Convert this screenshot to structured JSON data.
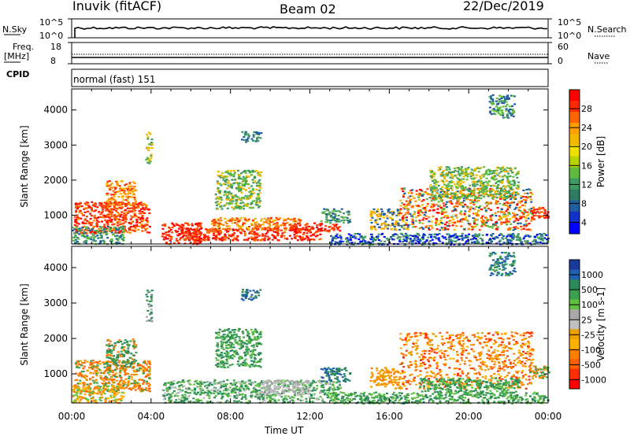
{
  "header": {
    "station": "Inuvik (fitACF)",
    "beam": "Beam 02",
    "date": "22/Dec/2019"
  },
  "strips": {
    "nsky_label": "N.Sky",
    "nsky_ticks": [
      "10^5",
      "10^0"
    ],
    "nsearch_label": "N.Search",
    "nsearch_ticks": [
      "10^5",
      "10^0"
    ],
    "freq_label": "Freq.",
    "freq_unit": "[MHz]",
    "freq_ticks": [
      "18",
      "8"
    ],
    "nave_label": "Nave",
    "nave_ticks": [
      "60",
      "0"
    ],
    "cpid_label": "CPID",
    "cpid_value": "normal (fast) 151"
  },
  "chart_data": [
    {
      "type": "heatmap",
      "name": "power",
      "ylabel": "Slant Range [km]",
      "colorbar_label": "Power [dB]",
      "y_ticks": [
        1000,
        2000,
        3000,
        4000
      ],
      "ylim": [
        180,
        4600
      ],
      "colorbar_ticks": [
        "28",
        "24",
        "20",
        "16",
        "12",
        "8",
        "4"
      ],
      "colorbar_colors": [
        "#ff0000",
        "#ff2a00",
        "#ff6600",
        "#ff9f00",
        "#f2b800",
        "#f0e000",
        "#b8d400",
        "#60bb40",
        "#3d9a60",
        "#2e7d62",
        "#1f5fa0",
        "#1030c8",
        "#0000ff"
      ],
      "regions": [
        {
          "t": [
            0.1,
            3.9
          ],
          "r": [
            500,
            1400
          ],
          "c": [
            "#ff2200",
            "#ff4500",
            "#ff8800",
            "#ff0000"
          ]
        },
        {
          "t": [
            1.7,
            3.2
          ],
          "r": [
            1200,
            2000
          ],
          "c": [
            "#ff7f00",
            "#ffb000",
            "#ff3000"
          ]
        },
        {
          "t": [
            0.0,
            2.6
          ],
          "r": [
            200,
            700
          ],
          "c": [
            "#3d9a60",
            "#1f5fa0",
            "#60bb40"
          ]
        },
        {
          "t": [
            3.7,
            4.0
          ],
          "r": [
            2500,
            3400
          ],
          "c": [
            "#60bb40",
            "#3d9a60",
            "#f2b800"
          ]
        },
        {
          "t": [
            4.5,
            6.5
          ],
          "r": [
            200,
            800
          ],
          "c": [
            "#ff0000",
            "#ff4500"
          ]
        },
        {
          "t": [
            5.5,
            12.5
          ],
          "r": [
            300,
            650
          ],
          "c": [
            "#ff2200",
            "#ff0000",
            "#ff6600"
          ]
        },
        {
          "t": [
            7.0,
            11.5
          ],
          "r": [
            600,
            950
          ],
          "c": [
            "#ff7f00",
            "#f2b800",
            "#ff3a00"
          ]
        },
        {
          "t": [
            11.0,
            13.5
          ],
          "r": [
            550,
            800
          ],
          "c": [
            "#ff0000",
            "#ff4500"
          ]
        },
        {
          "t": [
            7.2,
            9.5
          ],
          "r": [
            1200,
            2300
          ],
          "c": [
            "#3d9a60",
            "#60bb40",
            "#f2b800"
          ]
        },
        {
          "t": [
            12.5,
            14.0
          ],
          "r": [
            800,
            1200
          ],
          "c": [
            "#1f5fa0",
            "#3d9a60",
            "#60bb40"
          ]
        },
        {
          "t": [
            15.0,
            16.5
          ],
          "r": [
            600,
            1200
          ],
          "c": [
            "#f2b800",
            "#ff9f00",
            "#1f5fa0"
          ]
        },
        {
          "t": [
            16.5,
            23.2
          ],
          "r": [
            600,
            1800
          ],
          "c": [
            "#ff0000",
            "#ff4500",
            "#ff8800",
            "#f2b800",
            "#60bb40",
            "#1f5fa0"
          ]
        },
        {
          "t": [
            18.0,
            22.5
          ],
          "r": [
            1500,
            2400
          ],
          "c": [
            "#60bb40",
            "#3d9a60",
            "#f2b800"
          ]
        },
        {
          "t": [
            23.0,
            24.0
          ],
          "r": [
            900,
            1250
          ],
          "c": [
            "#ff2200",
            "#ff6600"
          ]
        },
        {
          "t": [
            13.0,
            24.0
          ],
          "r": [
            180,
            500
          ],
          "c": [
            "#1f5fa0",
            "#3d9a60",
            "#0000ff"
          ]
        },
        {
          "t": [
            8.5,
            9.5
          ],
          "r": [
            3100,
            3400
          ],
          "c": [
            "#1f5fa0",
            "#3d9a60"
          ]
        },
        {
          "t": [
            21.0,
            22.3
          ],
          "r": [
            3800,
            4450
          ],
          "c": [
            "#60bb40",
            "#1f5fa0"
          ]
        }
      ]
    },
    {
      "type": "heatmap",
      "name": "velocity",
      "ylabel": "Slant Range [km]",
      "colorbar_label": "Velocity [m s-1]",
      "y_ticks": [
        1000,
        2000,
        3000,
        4000
      ],
      "ylim": [
        180,
        4600
      ],
      "colorbar_ticks": [
        "1000",
        "500",
        "100",
        "25",
        "-25",
        "-100",
        "-500",
        "-1000"
      ],
      "colorbar_colors": [
        "#1a3a9a",
        "#2060b0",
        "#2a8a5a",
        "#3aa050",
        "#60c040",
        "#a8a8a8",
        "#c0c0c0",
        "#f0a000",
        "#ffb000",
        "#ff8000",
        "#ff6000",
        "#ff3000",
        "#ff0000"
      ],
      "regions": [
        {
          "t": [
            0.1,
            3.9
          ],
          "r": [
            500,
            1400
          ],
          "c": [
            "#ff8000",
            "#f0a000",
            "#ff6000",
            "#3aa050"
          ]
        },
        {
          "t": [
            1.7,
            3.2
          ],
          "r": [
            1200,
            2000
          ],
          "c": [
            "#ff8000",
            "#3aa050",
            "#2a8a5a"
          ]
        },
        {
          "t": [
            0.0,
            2.6
          ],
          "r": [
            200,
            700
          ],
          "c": [
            "#ff8000",
            "#60c040",
            "#ffb000"
          ]
        },
        {
          "t": [
            3.7,
            4.0
          ],
          "r": [
            2500,
            3400
          ],
          "c": [
            "#2a8a5a",
            "#3aa050",
            "#a8a8a8"
          ]
        },
        {
          "t": [
            4.5,
            13.5
          ],
          "r": [
            200,
            850
          ],
          "c": [
            "#60c040",
            "#3aa050",
            "#c0c0c0",
            "#2a8a5a"
          ]
        },
        {
          "t": [
            9.5,
            12.0
          ],
          "r": [
            450,
            850
          ],
          "c": [
            "#c0c0c0",
            "#a8a8a8"
          ]
        },
        {
          "t": [
            7.2,
            9.5
          ],
          "r": [
            1200,
            2300
          ],
          "c": [
            "#2a8a5a",
            "#3aa050",
            "#60c040"
          ]
        },
        {
          "t": [
            12.5,
            14.0
          ],
          "r": [
            800,
            1200
          ],
          "c": [
            "#2060b0",
            "#2a8a5a"
          ]
        },
        {
          "t": [
            15.0,
            16.5
          ],
          "r": [
            600,
            1200
          ],
          "c": [
            "#ff8000",
            "#f0a000"
          ]
        },
        {
          "t": [
            16.5,
            23.2
          ],
          "r": [
            600,
            2200
          ],
          "c": [
            "#ff8000",
            "#ff6000",
            "#f0a000",
            "#ffb000",
            "#ff3000"
          ]
        },
        {
          "t": [
            17.5,
            22.5
          ],
          "r": [
            500,
            900
          ],
          "c": [
            "#3aa050",
            "#2a8a5a",
            "#60c040"
          ]
        },
        {
          "t": [
            23.0,
            24.0
          ],
          "r": [
            900,
            1250
          ],
          "c": [
            "#ff8000",
            "#3aa050"
          ]
        },
        {
          "t": [
            13.0,
            24.0
          ],
          "r": [
            180,
            500
          ],
          "c": [
            "#3aa050",
            "#2a8a5a",
            "#60c040"
          ]
        },
        {
          "t": [
            8.5,
            9.5
          ],
          "r": [
            3100,
            3400
          ],
          "c": [
            "#2060b0",
            "#2a8a5a"
          ]
        },
        {
          "t": [
            21.0,
            22.3
          ],
          "r": [
            3800,
            4450
          ],
          "c": [
            "#3aa050",
            "#2060b0"
          ]
        }
      ]
    }
  ],
  "x_axis": {
    "label": "Time UT",
    "ticks": [
      "00:00",
      "04:00",
      "08:00",
      "12:00",
      "16:00",
      "20:00",
      "00:00"
    ]
  }
}
